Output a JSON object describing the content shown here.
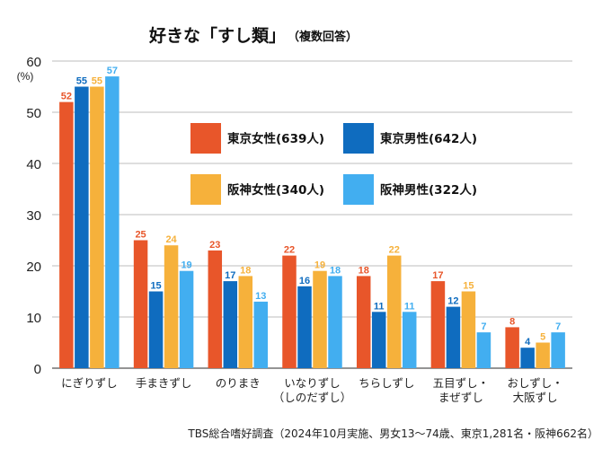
{
  "chart_data": {
    "type": "bar",
    "title": "好きな「すし類」",
    "subtitle": "（複数回答）",
    "ylabel": "(%)",
    "ylim": [
      0,
      60
    ],
    "yticks": [
      0,
      10,
      20,
      30,
      40,
      50,
      60
    ],
    "grid": true,
    "legend_position": "center-top",
    "categories": [
      [
        "にぎりずし"
      ],
      [
        "手まきずし"
      ],
      [
        "のりまき"
      ],
      [
        "いなりずし",
        "（しのだずし）"
      ],
      [
        "ちらしずし"
      ],
      [
        "五目ずし・",
        "まぜずし"
      ],
      [
        "おしずし・",
        "大阪ずし"
      ]
    ],
    "series": [
      {
        "name": "東京女性(639人)",
        "color": "#e8562a",
        "values": [
          52,
          25,
          23,
          22,
          18,
          17,
          8
        ]
      },
      {
        "name": "東京男性(642人)",
        "color": "#0f6cbf",
        "values": [
          55,
          15,
          17,
          16,
          11,
          12,
          4
        ]
      },
      {
        "name": "阪神女性(340人)",
        "color": "#f6b13b",
        "values": [
          55,
          24,
          18,
          19,
          22,
          15,
          5
        ]
      },
      {
        "name": "阪神男性(322人)",
        "color": "#42aef0",
        "values": [
          57,
          19,
          13,
          18,
          11,
          7,
          7
        ]
      }
    ],
    "source": "TBS総合嗜好調査（2024年10月実施、男女13～74歳、東京1,281名・阪神662名）"
  }
}
